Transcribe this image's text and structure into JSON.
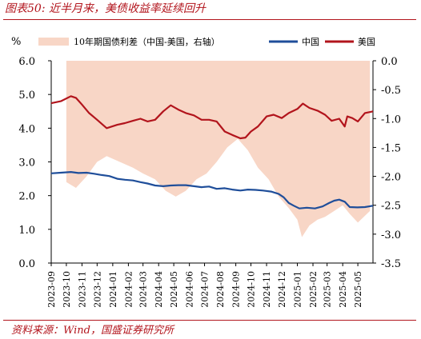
{
  "header": {
    "title": "图表50:  近半月来，美债收益率延续回升"
  },
  "footer": {
    "source": "资料来源：Wind，国盛证券研究所"
  },
  "colors": {
    "china": "#1f4e9a",
    "us": "#b2141c",
    "spread": "#f8d6c6",
    "accent": "#b2141c"
  },
  "chart_data": {
    "type": "line",
    "left_axis": {
      "unit": "%",
      "ylim": [
        0.0,
        6.0
      ],
      "ticks": [
        "0.0",
        "1.0",
        "2.0",
        "3.0",
        "4.0",
        "5.0",
        "6.0"
      ]
    },
    "right_axis": {
      "ylim": [
        -3.5,
        0.0
      ],
      "ticks": [
        "-3.5",
        "-3.0",
        "-2.5",
        "-2.0",
        "-1.5",
        "-1.0",
        "-0.5",
        "0.0"
      ]
    },
    "x_range": [
      "2023-09-01",
      "2025-05-31"
    ],
    "x_ticks": [
      "2023-09",
      "2023-10",
      "2023-11",
      "2023-12",
      "2024-01",
      "2024-02",
      "2024-03",
      "2024-04",
      "2024-05",
      "2024-06",
      "2024-07",
      "2024-08",
      "2024-09",
      "2024-10",
      "2024-11",
      "2024-12",
      "2025-01",
      "2025-02",
      "2025-03",
      "2025-04",
      "2025-05"
    ],
    "grid": false,
    "legend_position": "top",
    "series": [
      {
        "name": "10年期国债利差（中国-美国，右轴）",
        "axis": "right",
        "style": "area",
        "x": [
          "2023-10-01",
          "2023-10-20",
          "2023-11-10",
          "2023-12-01",
          "2023-12-20",
          "2024-01-15",
          "2024-02-10",
          "2024-03-01",
          "2024-03-25",
          "2024-04-15",
          "2024-05-05",
          "2024-05-25",
          "2024-06-15",
          "2024-07-05",
          "2024-07-25",
          "2024-08-15",
          "2024-09-05",
          "2024-09-25",
          "2024-10-15",
          "2024-11-05",
          "2024-11-25",
          "2024-12-15",
          "2025-01-01",
          "2025-01-10",
          "2025-01-25",
          "2025-02-10",
          "2025-02-25",
          "2025-03-15",
          "2025-04-01",
          "2025-04-15",
          "2025-05-01",
          "2025-05-25"
        ],
        "values": [
          -2.1,
          -2.2,
          -2.0,
          -1.75,
          -1.65,
          -1.75,
          -1.85,
          -1.95,
          -2.05,
          -2.25,
          -2.35,
          -2.25,
          -2.05,
          -1.95,
          -1.75,
          -1.5,
          -1.35,
          -1.55,
          -1.85,
          -2.05,
          -2.35,
          -2.55,
          -2.75,
          -3.05,
          -2.85,
          -2.75,
          -2.7,
          -2.6,
          -2.5,
          -2.65,
          -2.8,
          -2.6
        ]
      },
      {
        "name": "中国",
        "axis": "left",
        "x": [
          "2023-09-01",
          "2023-09-20",
          "2023-10-10",
          "2023-10-25",
          "2023-11-10",
          "2023-11-25",
          "2023-12-10",
          "2023-12-25",
          "2024-01-10",
          "2024-01-25",
          "2024-02-10",
          "2024-02-25",
          "2024-03-10",
          "2024-03-25",
          "2024-04-10",
          "2024-04-25",
          "2024-05-10",
          "2024-05-25",
          "2024-06-10",
          "2024-06-25",
          "2024-07-10",
          "2024-07-25",
          "2024-08-10",
          "2024-08-25",
          "2024-09-10",
          "2024-09-25",
          "2024-10-10",
          "2024-10-25",
          "2024-11-10",
          "2024-11-25",
          "2024-12-05",
          "2024-12-15",
          "2024-12-25",
          "2025-01-05",
          "2025-01-20",
          "2025-02-05",
          "2025-02-20",
          "2025-03-05",
          "2025-03-15",
          "2025-03-25",
          "2025-04-05",
          "2025-04-15",
          "2025-04-30",
          "2025-05-15",
          "2025-05-31"
        ],
        "values": [
          2.66,
          2.68,
          2.7,
          2.67,
          2.68,
          2.65,
          2.61,
          2.58,
          2.5,
          2.47,
          2.45,
          2.4,
          2.36,
          2.3,
          2.28,
          2.3,
          2.31,
          2.31,
          2.28,
          2.25,
          2.27,
          2.2,
          2.22,
          2.18,
          2.15,
          2.18,
          2.17,
          2.15,
          2.12,
          2.05,
          1.95,
          1.78,
          1.7,
          1.62,
          1.64,
          1.62,
          1.68,
          1.78,
          1.85,
          1.88,
          1.82,
          1.66,
          1.65,
          1.66,
          1.7
        ]
      },
      {
        "name": "美国",
        "axis": "left",
        "x": [
          "2023-09-01",
          "2023-09-20",
          "2023-10-10",
          "2023-10-20",
          "2023-11-01",
          "2023-11-15",
          "2023-12-01",
          "2023-12-20",
          "2024-01-10",
          "2024-01-25",
          "2024-02-10",
          "2024-02-25",
          "2024-03-10",
          "2024-03-25",
          "2024-04-10",
          "2024-04-25",
          "2024-05-10",
          "2024-05-25",
          "2024-06-10",
          "2024-06-25",
          "2024-07-10",
          "2024-07-25",
          "2024-08-10",
          "2024-08-25",
          "2024-09-10",
          "2024-09-20",
          "2024-10-01",
          "2024-10-15",
          "2024-11-01",
          "2024-11-15",
          "2024-12-01",
          "2024-12-15",
          "2025-01-01",
          "2025-01-12",
          "2025-01-25",
          "2025-02-10",
          "2025-02-25",
          "2025-03-10",
          "2025-03-25",
          "2025-04-05",
          "2025-04-10",
          "2025-04-20",
          "2025-05-01",
          "2025-05-15",
          "2025-05-31"
        ],
        "values": [
          4.74,
          4.8,
          4.95,
          4.9,
          4.7,
          4.45,
          4.25,
          4.0,
          4.1,
          4.15,
          4.22,
          4.28,
          4.2,
          4.25,
          4.5,
          4.68,
          4.55,
          4.45,
          4.38,
          4.25,
          4.25,
          4.2,
          3.9,
          3.8,
          3.7,
          3.72,
          3.9,
          4.05,
          4.35,
          4.4,
          4.3,
          4.45,
          4.57,
          4.73,
          4.6,
          4.52,
          4.4,
          4.22,
          4.28,
          4.05,
          4.35,
          4.3,
          4.2,
          4.45,
          4.5
        ]
      }
    ]
  }
}
